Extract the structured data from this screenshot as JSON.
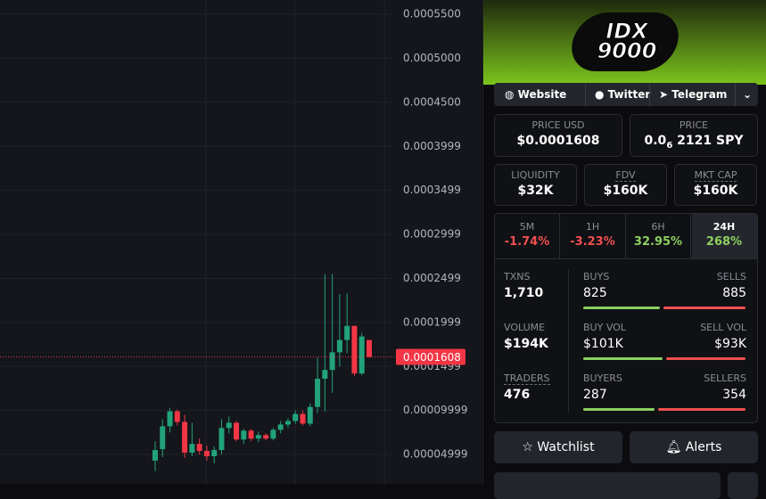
{
  "chart_data": {
    "type": "candlestick",
    "open": [
      4.3e-05,
      5.6e-05,
      8.2e-05,
      9.9e-05,
      8.7e-05,
      5.2e-05,
      6.2e-05,
      5.4e-05,
      4.8e-05,
      5.5e-05,
      8e-05,
      8.6e-05,
      6.7e-05,
      7.7e-05,
      6.8e-05,
      7.2e-05,
      6.8e-05,
      7.8e-05,
      8.4e-05,
      8.8e-05,
      9.6e-05,
      8.5e-05,
      0.000104,
      0.000136,
      0.000146,
      0.000166,
      0.00018,
      0.000196,
      0.000142,
      0.00018
    ],
    "high": [
      6.5e-05,
      9e-05,
      0.000103,
      0.000101,
      9.5e-05,
      8.6e-05,
      6.8e-05,
      6e-05,
      5.9e-05,
      9e-05,
      9.3e-05,
      8.8e-05,
      7.9e-05,
      7.9e-05,
      7.6e-05,
      7.4e-05,
      8e-05,
      8.8e-05,
      9.1e-05,
      0.0001,
      0.0001,
      0.000108,
      0.00016,
      0.000255,
      0.000255,
      0.000232,
      0.000233,
      0.000196,
      0.000188,
      0.00018
    ],
    "low": [
      3.1e-05,
      4.7e-05,
      7.5e-05,
      8.3e-05,
      4.6e-05,
      4.8e-05,
      5e-05,
      4.3e-05,
      4e-05,
      5e-05,
      7.4e-05,
      6.5e-05,
      6.2e-05,
      6.5e-05,
      6.4e-05,
      6.6e-05,
      6.6e-05,
      7.4e-05,
      8e-05,
      8.5e-05,
      8.3e-05,
      8.2e-05,
      9.7e-05,
      9.9e-05,
      0.00012,
      0.00015,
      0.000165,
      0.000139,
      0.00014,
      0.00016
    ],
    "close": [
      5.5e-05,
      8.2e-05,
      9.9e-05,
      8.7e-05,
      5.2e-05,
      6.2e-05,
      5.4e-05,
      4.8e-05,
      5.5e-05,
      8e-05,
      8.6e-05,
      6.7e-05,
      7.7e-05,
      6.8e-05,
      7.2e-05,
      6.8e-05,
      7.8e-05,
      8.4e-05,
      8.8e-05,
      9.6e-05,
      8.5e-05,
      0.000104,
      0.000136,
      0.000146,
      0.000166,
      0.00018,
      0.000196,
      0.000142,
      0.000184,
      0.0001608
    ],
    "up_color": "#22a27a",
    "down_color": "#f23645",
    "current_price": 0.0001608,
    "ylim": [
      1.66e-05,
      0.0005662
    ],
    "yticks": [
      {
        "value": 0.00055,
        "label": "0.0005500"
      },
      {
        "value": 0.0005,
        "label": "0.0005000"
      },
      {
        "value": 0.00045,
        "label": "0.0004500"
      },
      0.0003999,
      0.0003499,
      0.0002999,
      0.0002499,
      0.0001999,
      0.0001499,
      9.999e-05,
      4.999e-05
    ],
    "grid": true
  },
  "panel": {
    "logo": [
      "IDX",
      "9000"
    ],
    "links": [
      "Website",
      "Twitter",
      "Telegram"
    ],
    "price_usd": {
      "label": "PRICE USD",
      "value": "$0.0001608"
    },
    "price": {
      "label": "PRICE",
      "prefix": "0.0",
      "subscript": "6",
      "rest": "2121 SPY"
    },
    "metrics": [
      {
        "label": "LIQUIDITY",
        "value": "$32K"
      },
      {
        "label": "FDV",
        "value": "$160K"
      },
      {
        "label": "MKT CAP",
        "value": "$160K"
      }
    ],
    "periods": [
      {
        "label": "5M",
        "change": "-1.74%"
      },
      {
        "label": "1H",
        "change": "-3.23%"
      },
      {
        "label": "6H",
        "change": "32.95%"
      },
      {
        "label": "24H",
        "change": "268%"
      }
    ],
    "txns": {
      "label": "TXNS",
      "value": "1,710"
    },
    "buys": {
      "label": "BUYS",
      "value": 825
    },
    "sells": {
      "label": "SELLS",
      "value": 885
    },
    "volume": {
      "label": "VOLUME",
      "value": "$194K"
    },
    "buy_vol": {
      "label": "BUY VOL",
      "value": "$101K"
    },
    "sell_vol": {
      "label": "SELL VOL",
      "value": "$93K"
    },
    "traders": {
      "label": "TRADERS",
      "value": 476
    },
    "buyers": {
      "label": "BUYERS",
      "value": 287
    },
    "sellers": {
      "label": "SELLERS",
      "value": 354
    },
    "buttons": [
      "Watchlist",
      "Alerts"
    ]
  }
}
